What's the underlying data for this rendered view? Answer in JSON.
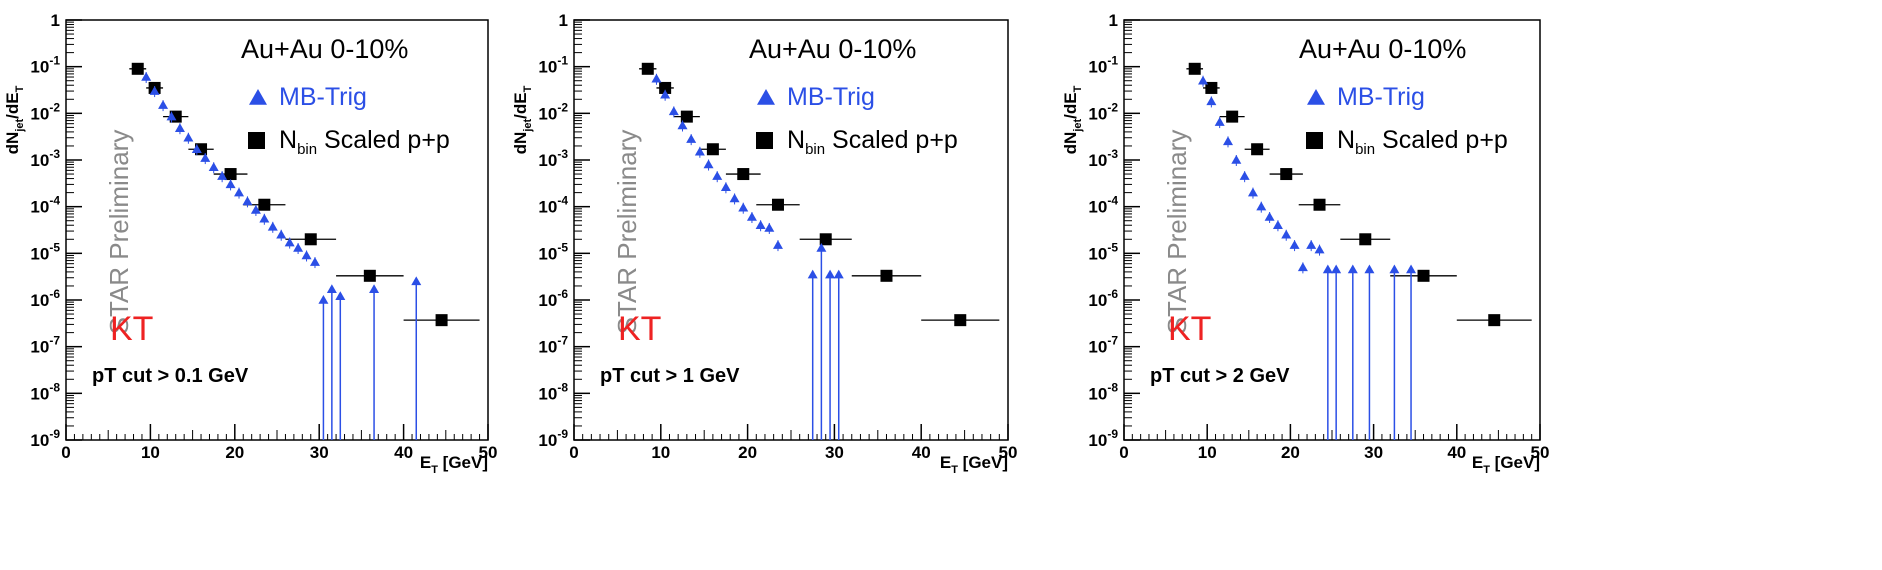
{
  "colors": {
    "mb": "#2b4fe6",
    "pp": "#000000",
    "prelim": "#8a8a8a",
    "algo": "#ee2222"
  },
  "labels": {
    "ylabel_main": "dN",
    "ylabel_sub": "jet",
    "ylabel_tail": "/dE",
    "ylabel_tail_sub": "T",
    "xlabel_main": "E",
    "xlabel_sub": "T",
    "xlabel_tail": " [GeV]"
  },
  "chart_data": [
    {
      "type": "scatter",
      "system": "Au+Au 0-10%",
      "preliminary": "STAR Preliminary",
      "algorithm": "KT",
      "cut": "pT cut > 0.1 GeV",
      "legend": {
        "mb": "MB-Trig",
        "pp_main": "N",
        "pp_sub": "bin",
        "pp_tail": " Scaled p+p"
      },
      "xlim": [
        0,
        50
      ],
      "ylim_exp": [
        -9,
        0
      ],
      "xticks": [
        0,
        10,
        20,
        30,
        40,
        50
      ],
      "xlabel": "ET [GeV]",
      "ylabel": "dNjet/dET",
      "series": [
        {
          "name": "Nbin Scaled p+p",
          "points": [
            {
              "x": 8.5,
              "xerr": 1.0,
              "y": 0.09
            },
            {
              "x": 10.5,
              "xerr": 1.0,
              "y": 0.035
            },
            {
              "x": 13,
              "xerr": 1.5,
              "y": 0.0085
            },
            {
              "x": 16,
              "xerr": 1.5,
              "y": 0.0017
            },
            {
              "x": 19.5,
              "xerr": 2.0,
              "y": 0.0005
            },
            {
              "x": 23.5,
              "xerr": 2.5,
              "y": 0.00011
            },
            {
              "x": 29,
              "xerr": 3.0,
              "y": 2e-05
            },
            {
              "x": 36,
              "xerr": 4.0,
              "y": 3.3e-06
            },
            {
              "x": 44.5,
              "xerr": 4.5,
              "y": 3.7e-07
            }
          ]
        },
        {
          "name": "MB-Trig",
          "points": [
            {
              "x": 9.5,
              "y": 0.06
            },
            {
              "x": 10.5,
              "y": 0.03
            },
            {
              "x": 11.5,
              "y": 0.015
            },
            {
              "x": 12.5,
              "y": 0.0085
            },
            {
              "x": 13.5,
              "y": 0.0048
            },
            {
              "x": 14.5,
              "y": 0.003
            },
            {
              "x": 15.5,
              "y": 0.0017
            },
            {
              "x": 16.5,
              "y": 0.0011
            },
            {
              "x": 17.5,
              "y": 0.0007
            },
            {
              "x": 18.5,
              "y": 0.00045
            },
            {
              "x": 19.5,
              "y": 0.0003
            },
            {
              "x": 20.5,
              "y": 0.0002
            },
            {
              "x": 21.5,
              "y": 0.00013
            },
            {
              "x": 22.5,
              "y": 8.5e-05
            },
            {
              "x": 23.5,
              "y": 5.5e-05
            },
            {
              "x": 24.5,
              "y": 3.7e-05
            },
            {
              "x": 25.5,
              "y": 2.5e-05
            },
            {
              "x": 26.5,
              "y": 1.7e-05
            },
            {
              "x": 27.5,
              "y": 1.3e-05
            },
            {
              "x": 28.5,
              "y": 9e-06
            },
            {
              "x": 29.5,
              "y": 6.5e-06
            }
          ],
          "arrows": [
            {
              "x": 30.5,
              "y": 1e-06
            },
            {
              "x": 31.5,
              "y": 1.7e-06
            },
            {
              "x": 32.5,
              "y": 1.2e-06
            },
            {
              "x": 36.5,
              "y": 1.7e-06
            },
            {
              "x": 41.5,
              "y": 2.5e-06
            }
          ]
        }
      ]
    },
    {
      "type": "scatter",
      "system": "Au+Au 0-10%",
      "preliminary": "STAR Preliminary",
      "algorithm": "KT",
      "cut": "pT cut > 1 GeV",
      "legend": {
        "mb": "MB-Trig",
        "pp_main": "N",
        "pp_sub": "bin",
        "pp_tail": " Scaled p+p"
      },
      "xlim": [
        0,
        50
      ],
      "ylim_exp": [
        -9,
        0
      ],
      "xticks": [
        0,
        10,
        20,
        30,
        40,
        50
      ],
      "xlabel": "ET [GeV]",
      "ylabel": "dNjet/dET",
      "series": [
        {
          "name": "Nbin Scaled p+p",
          "points": [
            {
              "x": 8.5,
              "xerr": 1.0,
              "y": 0.09
            },
            {
              "x": 10.5,
              "xerr": 1.0,
              "y": 0.035
            },
            {
              "x": 13,
              "xerr": 1.5,
              "y": 0.0085
            },
            {
              "x": 16,
              "xerr": 1.5,
              "y": 0.0017
            },
            {
              "x": 19.5,
              "xerr": 2.0,
              "y": 0.0005
            },
            {
              "x": 23.5,
              "xerr": 2.5,
              "y": 0.00011
            },
            {
              "x": 29,
              "xerr": 3.0,
              "y": 2e-05
            },
            {
              "x": 36,
              "xerr": 4.0,
              "y": 3.3e-06
            },
            {
              "x": 44.5,
              "xerr": 4.5,
              "y": 3.7e-07
            }
          ]
        },
        {
          "name": "MB-Trig",
          "points": [
            {
              "x": 9.5,
              "y": 0.055
            },
            {
              "x": 10.5,
              "y": 0.025
            },
            {
              "x": 11.5,
              "y": 0.011
            },
            {
              "x": 12.5,
              "y": 0.0055
            },
            {
              "x": 13.5,
              "y": 0.0028
            },
            {
              "x": 14.5,
              "y": 0.0015
            },
            {
              "x": 15.5,
              "y": 0.0008
            },
            {
              "x": 16.5,
              "y": 0.00045
            },
            {
              "x": 17.5,
              "y": 0.00026
            },
            {
              "x": 18.5,
              "y": 0.00015
            },
            {
              "x": 19.5,
              "y": 9.5e-05
            },
            {
              "x": 20.5,
              "y": 6e-05
            },
            {
              "x": 21.5,
              "y": 4e-05
            },
            {
              "x": 22.5,
              "y": 3.5e-05
            },
            {
              "x": 23.5,
              "y": 1.5e-05
            }
          ],
          "arrows": [
            {
              "x": 27.5,
              "y": 3.5e-06
            },
            {
              "x": 28.5,
              "y": 1.3e-05
            },
            {
              "x": 29.5,
              "y": 3.5e-06
            },
            {
              "x": 30.5,
              "y": 3.5e-06
            }
          ]
        }
      ]
    },
    {
      "type": "scatter",
      "system": "Au+Au 0-10%",
      "preliminary": "STAR Preliminary",
      "algorithm": "KT",
      "cut": "pT cut > 2 GeV",
      "legend": {
        "mb": "MB-Trig",
        "pp_main": "N",
        "pp_sub": "bin",
        "pp_tail": " Scaled p+p"
      },
      "xlim": [
        0,
        50
      ],
      "ylim_exp": [
        -9,
        0
      ],
      "xticks": [
        0,
        10,
        20,
        30,
        40,
        50
      ],
      "xlabel": "ET [GeV]",
      "ylabel": "dNjet/dET",
      "series": [
        {
          "name": "Nbin Scaled p+p",
          "points": [
            {
              "x": 8.5,
              "xerr": 1.0,
              "y": 0.09
            },
            {
              "x": 10.5,
              "xerr": 1.0,
              "y": 0.035
            },
            {
              "x": 13,
              "xerr": 1.5,
              "y": 0.0085
            },
            {
              "x": 16,
              "xerr": 1.5,
              "y": 0.0017
            },
            {
              "x": 19.5,
              "xerr": 2.0,
              "y": 0.0005
            },
            {
              "x": 23.5,
              "xerr": 2.5,
              "y": 0.00011
            },
            {
              "x": 29,
              "xerr": 3.0,
              "y": 2e-05
            },
            {
              "x": 36,
              "xerr": 4.0,
              "y": 3.3e-06
            },
            {
              "x": 44.5,
              "xerr": 4.5,
              "y": 3.7e-07
            }
          ]
        },
        {
          "name": "MB-Trig",
          "points": [
            {
              "x": 9.5,
              "y": 0.05
            },
            {
              "x": 10.5,
              "y": 0.018
            },
            {
              "x": 11.5,
              "y": 0.0065
            },
            {
              "x": 12.5,
              "y": 0.0025
            },
            {
              "x": 13.5,
              "y": 0.001
            },
            {
              "x": 14.5,
              "y": 0.00045
            },
            {
              "x": 15.5,
              "y": 0.0002
            },
            {
              "x": 16.5,
              "y": 0.0001
            },
            {
              "x": 17.5,
              "y": 6e-05
            },
            {
              "x": 18.5,
              "y": 4e-05
            },
            {
              "x": 19.5,
              "y": 2.5e-05
            },
            {
              "x": 20.5,
              "y": 1.5e-05
            },
            {
              "x": 21.5,
              "y": 5e-06
            },
            {
              "x": 22.5,
              "y": 1.5e-05
            },
            {
              "x": 23.5,
              "y": 1.2e-05
            }
          ],
          "arrows": [
            {
              "x": 24.5,
              "y": 4.5e-06
            },
            {
              "x": 25.5,
              "y": 4.5e-06
            },
            {
              "x": 27.5,
              "y": 4.5e-06
            },
            {
              "x": 29.5,
              "y": 4.5e-06
            },
            {
              "x": 32.5,
              "y": 4.5e-06
            },
            {
              "x": 34.5,
              "y": 4.5e-06
            }
          ]
        }
      ]
    }
  ]
}
